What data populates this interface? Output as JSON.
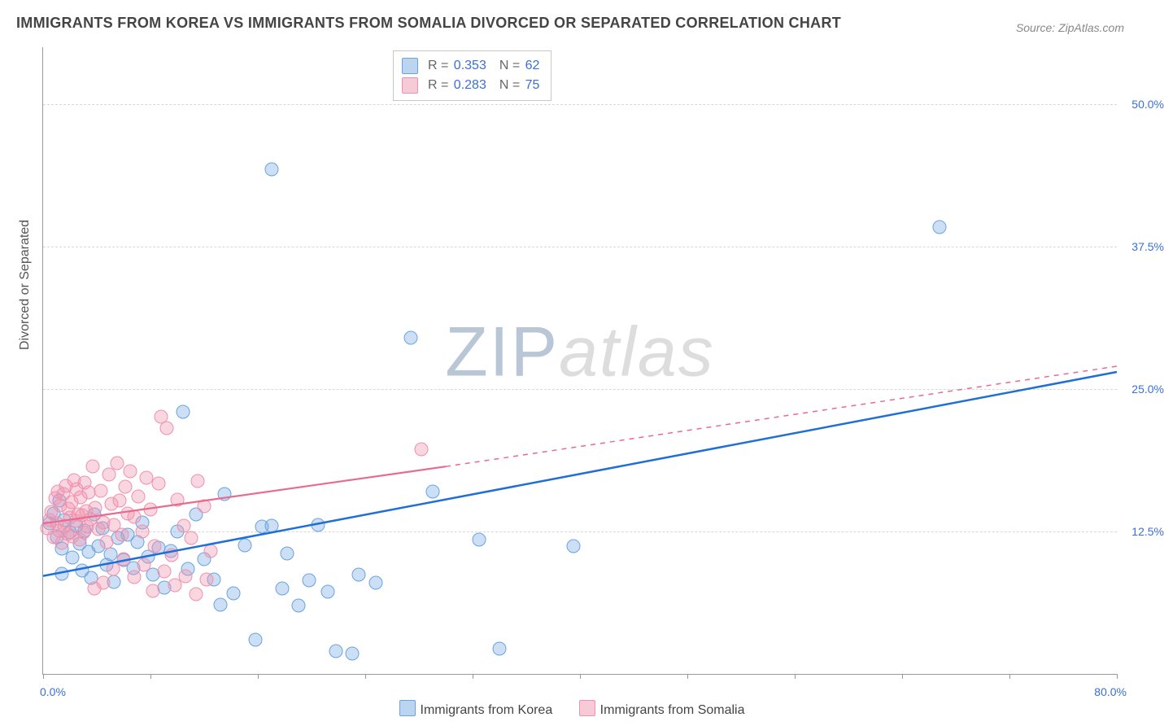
{
  "title": "IMMIGRANTS FROM KOREA VS IMMIGRANTS FROM SOMALIA DIVORCED OR SEPARATED CORRELATION CHART",
  "source_label": "Source: ",
  "source_name": "ZipAtlas.com",
  "y_axis_title": "Divorced or Separated",
  "watermark_a": "ZIP",
  "watermark_b": "atlas",
  "chart": {
    "type": "scatter",
    "xlim": [
      0,
      80
    ],
    "ylim": [
      0,
      55
    ],
    "xtick_positions": [
      0,
      8,
      16,
      24,
      32,
      40,
      48,
      56,
      64,
      72,
      80
    ],
    "x_label_min": "0.0%",
    "x_label_max": "80.0%",
    "y_gridlines": [
      {
        "v": 12.5,
        "label": "12.5%"
      },
      {
        "v": 25.0,
        "label": "25.0%"
      },
      {
        "v": 37.5,
        "label": "37.5%"
      },
      {
        "v": 50.0,
        "label": "50.0%"
      }
    ],
    "background_color": "#ffffff",
    "grid_color": "#d8d8d8",
    "axis_color": "#999999",
    "label_color": "#3a6fd8",
    "point_radius": 8,
    "series": [
      {
        "id": "korea",
        "name": "Immigrants from Korea",
        "color_fill": "rgba(120,170,225,0.38)",
        "color_stroke": "#6aa3e0",
        "trend_color": "#1f6fd6",
        "trend_width": 2.5,
        "R": "0.353",
        "N": "62",
        "trend": {
          "x1": 0,
          "y1": 8.6,
          "x2": 80,
          "y2": 26.5
        },
        "points": [
          [
            0.5,
            13.2
          ],
          [
            0.8,
            14.1
          ],
          [
            1.0,
            12.0
          ],
          [
            1.2,
            15.2
          ],
          [
            1.4,
            11.0
          ],
          [
            1.6,
            13.5
          ],
          [
            1.4,
            8.8
          ],
          [
            2.0,
            12.4
          ],
          [
            2.2,
            10.2
          ],
          [
            2.5,
            13.0
          ],
          [
            2.7,
            11.4
          ],
          [
            2.9,
            9.1
          ],
          [
            3.1,
            12.6
          ],
          [
            3.4,
            10.7
          ],
          [
            3.6,
            8.4
          ],
          [
            3.8,
            14.0
          ],
          [
            4.1,
            11.2
          ],
          [
            4.4,
            12.8
          ],
          [
            4.7,
            9.6
          ],
          [
            5.0,
            10.5
          ],
          [
            5.3,
            8.1
          ],
          [
            5.6,
            11.9
          ],
          [
            6.0,
            10.0
          ],
          [
            6.3,
            12.2
          ],
          [
            6.7,
            9.3
          ],
          [
            7.0,
            11.6
          ],
          [
            7.4,
            13.3
          ],
          [
            7.8,
            10.3
          ],
          [
            8.2,
            8.7
          ],
          [
            8.6,
            11.1
          ],
          [
            9.0,
            7.6
          ],
          [
            9.5,
            10.8
          ],
          [
            10.0,
            12.5
          ],
          [
            10.4,
            23.0
          ],
          [
            10.8,
            9.2
          ],
          [
            11.4,
            14.0
          ],
          [
            12.0,
            10.1
          ],
          [
            12.7,
            8.3
          ],
          [
            13.5,
            15.8
          ],
          [
            14.2,
            7.1
          ],
          [
            15.0,
            11.3
          ],
          [
            15.8,
            3.0
          ],
          [
            16.3,
            12.9
          ],
          [
            17.0,
            13.0
          ],
          [
            17.8,
            7.5
          ],
          [
            18.2,
            10.6
          ],
          [
            19.0,
            6.0
          ],
          [
            19.8,
            8.2
          ],
          [
            20.5,
            13.1
          ],
          [
            21.2,
            7.2
          ],
          [
            21.8,
            2.0
          ],
          [
            23.0,
            1.8
          ],
          [
            17.0,
            44.3
          ],
          [
            27.4,
            29.5
          ],
          [
            29.0,
            16.0
          ],
          [
            32.5,
            11.8
          ],
          [
            34.0,
            2.2
          ],
          [
            39.5,
            11.2
          ],
          [
            23.5,
            8.7
          ],
          [
            24.8,
            8.0
          ],
          [
            66.8,
            39.2
          ],
          [
            13.2,
            6.1
          ]
        ]
      },
      {
        "id": "somalia",
        "name": "Immigrants from Somalia",
        "color_fill": "rgba(240,150,175,0.38)",
        "color_stroke": "#ef90ad",
        "trend_color": "#e86b8f",
        "trend_width": 2.2,
        "R": "0.283",
        "N": "75",
        "trend": {
          "x1": 0,
          "y1": 13.2,
          "x2": 30,
          "y2": 18.2,
          "x3": 80,
          "y3": 27.0
        },
        "points": [
          [
            0.3,
            12.8
          ],
          [
            0.5,
            13.5
          ],
          [
            0.6,
            14.2
          ],
          [
            0.8,
            12.0
          ],
          [
            0.9,
            15.4
          ],
          [
            1.0,
            13.2
          ],
          [
            1.1,
            16.0
          ],
          [
            1.2,
            12.6
          ],
          [
            1.3,
            14.8
          ],
          [
            1.4,
            11.5
          ],
          [
            1.5,
            15.8
          ],
          [
            1.6,
            13.0
          ],
          [
            1.7,
            16.5
          ],
          [
            1.8,
            12.3
          ],
          [
            1.9,
            14.5
          ],
          [
            2.0,
            13.7
          ],
          [
            2.1,
            15.1
          ],
          [
            2.2,
            12.1
          ],
          [
            2.3,
            17.0
          ],
          [
            2.4,
            13.4
          ],
          [
            2.5,
            16.2
          ],
          [
            2.6,
            14.0
          ],
          [
            2.7,
            11.8
          ],
          [
            2.8,
            15.5
          ],
          [
            2.9,
            13.9
          ],
          [
            3.0,
            12.4
          ],
          [
            3.1,
            16.8
          ],
          [
            3.2,
            14.3
          ],
          [
            3.3,
            12.9
          ],
          [
            3.4,
            15.9
          ],
          [
            3.5,
            13.6
          ],
          [
            3.7,
            18.2
          ],
          [
            3.9,
            14.6
          ],
          [
            4.1,
            12.7
          ],
          [
            4.3,
            16.1
          ],
          [
            4.5,
            13.3
          ],
          [
            4.7,
            11.6
          ],
          [
            4.9,
            17.5
          ],
          [
            5.1,
            14.9
          ],
          [
            5.3,
            13.1
          ],
          [
            5.5,
            18.5
          ],
          [
            5.7,
            15.2
          ],
          [
            5.9,
            12.2
          ],
          [
            6.1,
            16.4
          ],
          [
            6.3,
            14.1
          ],
          [
            6.5,
            17.8
          ],
          [
            6.8,
            13.8
          ],
          [
            7.1,
            15.6
          ],
          [
            7.4,
            12.5
          ],
          [
            7.7,
            17.2
          ],
          [
            8.0,
            14.4
          ],
          [
            8.3,
            11.2
          ],
          [
            8.6,
            16.7
          ],
          [
            8.8,
            22.6
          ],
          [
            9.2,
            21.6
          ],
          [
            9.6,
            10.4
          ],
          [
            10.0,
            15.3
          ],
          [
            10.5,
            13.0
          ],
          [
            11.0,
            11.9
          ],
          [
            11.5,
            16.9
          ],
          [
            12.0,
            14.7
          ],
          [
            12.5,
            10.8
          ],
          [
            4.5,
            8.0
          ],
          [
            5.2,
            9.2
          ],
          [
            6.0,
            10.1
          ],
          [
            6.8,
            8.5
          ],
          [
            7.5,
            9.6
          ],
          [
            8.2,
            7.3
          ],
          [
            9.0,
            9.0
          ],
          [
            9.8,
            7.8
          ],
          [
            10.6,
            8.6
          ],
          [
            11.4,
            7.0
          ],
          [
            12.2,
            8.3
          ],
          [
            3.8,
            7.5
          ],
          [
            28.2,
            19.7
          ]
        ]
      }
    ]
  },
  "legend": {
    "korea": "Immigrants from Korea",
    "somalia": "Immigrants from Somalia"
  },
  "stats_labels": {
    "R": "R =",
    "N": "N ="
  }
}
